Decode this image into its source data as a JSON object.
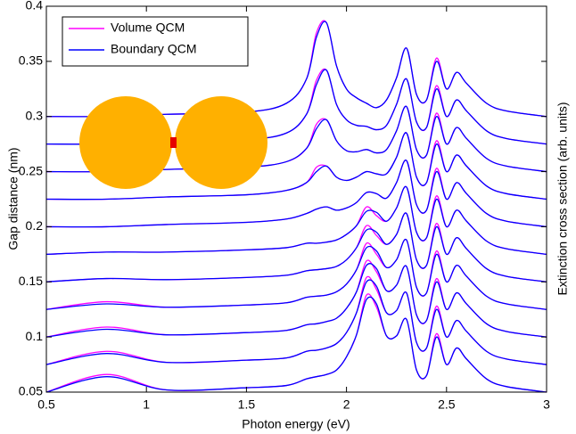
{
  "chart_data": {
    "type": "line",
    "x_label": "Photon energy (eV)",
    "y_label": "Gap distance (nm)",
    "y2_label": "Extinction cross section (arb. units)",
    "xlim": [
      0.5,
      3
    ],
    "ylim": [
      0.05,
      0.4
    ],
    "xticks": [
      0.5,
      1,
      1.5,
      2,
      2.5,
      3
    ],
    "yticks": [
      0.05,
      0.1,
      0.15,
      0.2,
      0.25,
      0.3,
      0.35,
      0.4
    ],
    "legend": "upper left",
    "x": [
      0.5,
      0.8,
      1.1,
      1.5,
      1.7,
      1.8,
      1.85,
      1.9,
      1.95,
      2.0,
      2.05,
      2.1,
      2.15,
      2.2,
      2.25,
      2.3,
      2.35,
      2.4,
      2.45,
      2.5,
      2.55,
      2.6,
      2.7,
      2.8,
      3.0
    ],
    "series": [
      {
        "name": "Volume QCM",
        "color": "#ff00ff",
        "values": [
          [
            0.05,
            0.066,
            0.052,
            0.054,
            0.056,
            0.062,
            0.064,
            0.066,
            0.07,
            0.082,
            0.102,
            0.138,
            0.127,
            0.101,
            0.101,
            0.116,
            0.07,
            0.065,
            0.103,
            0.075,
            0.09,
            0.08,
            0.062,
            0.055,
            0.05
          ],
          [
            0.075,
            0.087,
            0.077,
            0.079,
            0.081,
            0.087,
            0.088,
            0.09,
            0.094,
            0.104,
            0.122,
            0.154,
            0.143,
            0.122,
            0.124,
            0.14,
            0.095,
            0.09,
            0.128,
            0.1,
            0.115,
            0.105,
            0.087,
            0.08,
            0.075
          ],
          [
            0.1,
            0.109,
            0.102,
            0.104,
            0.106,
            0.111,
            0.112,
            0.114,
            0.117,
            0.126,
            0.141,
            0.169,
            0.159,
            0.142,
            0.147,
            0.164,
            0.12,
            0.115,
            0.153,
            0.125,
            0.14,
            0.13,
            0.112,
            0.105,
            0.1
          ],
          [
            0.125,
            0.132,
            0.127,
            0.129,
            0.131,
            0.136,
            0.137,
            0.138,
            0.141,
            0.148,
            0.161,
            0.185,
            0.175,
            0.163,
            0.17,
            0.188,
            0.145,
            0.14,
            0.178,
            0.15,
            0.165,
            0.155,
            0.137,
            0.13,
            0.125
          ],
          [
            0.15,
            0.153,
            0.152,
            0.154,
            0.156,
            0.16,
            0.161,
            0.162,
            0.164,
            0.17,
            0.181,
            0.201,
            0.192,
            0.184,
            0.193,
            0.212,
            0.17,
            0.165,
            0.203,
            0.175,
            0.19,
            0.18,
            0.162,
            0.155,
            0.15
          ],
          [
            0.175,
            0.177,
            0.177,
            0.179,
            0.181,
            0.185,
            0.185,
            0.186,
            0.188,
            0.193,
            0.201,
            0.218,
            0.21,
            0.205,
            0.217,
            0.236,
            0.195,
            0.19,
            0.228,
            0.2,
            0.215,
            0.205,
            0.187,
            0.18,
            0.175
          ],
          [
            0.2,
            0.2,
            0.202,
            0.204,
            0.207,
            0.212,
            0.216,
            0.218,
            0.215,
            0.217,
            0.222,
            0.231,
            0.23,
            0.226,
            0.24,
            0.26,
            0.22,
            0.215,
            0.253,
            0.225,
            0.24,
            0.23,
            0.212,
            0.205,
            0.2
          ],
          [
            0.225,
            0.225,
            0.227,
            0.229,
            0.233,
            0.24,
            0.254,
            0.255,
            0.245,
            0.242,
            0.245,
            0.25,
            0.248,
            0.248,
            0.263,
            0.285,
            0.245,
            0.24,
            0.278,
            0.25,
            0.265,
            0.255,
            0.237,
            0.23,
            0.225
          ],
          [
            0.25,
            0.25,
            0.252,
            0.254,
            0.259,
            0.271,
            0.293,
            0.297,
            0.278,
            0.269,
            0.268,
            0.27,
            0.267,
            0.27,
            0.287,
            0.309,
            0.27,
            0.265,
            0.303,
            0.275,
            0.29,
            0.28,
            0.262,
            0.255,
            0.25
          ],
          [
            0.275,
            0.275,
            0.277,
            0.279,
            0.285,
            0.302,
            0.333,
            0.342,
            0.311,
            0.297,
            0.292,
            0.291,
            0.288,
            0.292,
            0.311,
            0.334,
            0.295,
            0.29,
            0.328,
            0.3,
            0.315,
            0.305,
            0.287,
            0.28,
            0.275
          ],
          [
            0.3,
            0.3,
            0.302,
            0.304,
            0.312,
            0.334,
            0.376,
            0.385,
            0.346,
            0.325,
            0.317,
            0.312,
            0.308,
            0.315,
            0.335,
            0.362,
            0.32,
            0.315,
            0.353,
            0.325,
            0.34,
            0.33,
            0.312,
            0.305,
            0.3
          ]
        ]
      },
      {
        "name": "Boundary QCM",
        "color": "#0000ff",
        "values": [
          [
            0.05,
            0.064,
            0.052,
            0.054,
            0.056,
            0.062,
            0.064,
            0.066,
            0.07,
            0.082,
            0.102,
            0.134,
            0.13,
            0.101,
            0.101,
            0.116,
            0.07,
            0.065,
            0.1,
            0.075,
            0.09,
            0.08,
            0.062,
            0.055,
            0.05
          ],
          [
            0.075,
            0.085,
            0.077,
            0.079,
            0.081,
            0.087,
            0.088,
            0.09,
            0.094,
            0.104,
            0.122,
            0.15,
            0.146,
            0.122,
            0.124,
            0.14,
            0.095,
            0.09,
            0.125,
            0.1,
            0.115,
            0.105,
            0.087,
            0.08,
            0.075
          ],
          [
            0.1,
            0.107,
            0.102,
            0.104,
            0.106,
            0.111,
            0.112,
            0.114,
            0.117,
            0.126,
            0.141,
            0.165,
            0.162,
            0.142,
            0.147,
            0.164,
            0.12,
            0.115,
            0.15,
            0.125,
            0.14,
            0.13,
            0.112,
            0.105,
            0.1
          ],
          [
            0.125,
            0.13,
            0.127,
            0.129,
            0.131,
            0.136,
            0.137,
            0.138,
            0.141,
            0.148,
            0.161,
            0.181,
            0.178,
            0.163,
            0.17,
            0.188,
            0.145,
            0.14,
            0.175,
            0.15,
            0.165,
            0.155,
            0.137,
            0.13,
            0.125
          ],
          [
            0.15,
            0.153,
            0.152,
            0.154,
            0.156,
            0.16,
            0.161,
            0.162,
            0.164,
            0.17,
            0.181,
            0.197,
            0.195,
            0.184,
            0.193,
            0.212,
            0.17,
            0.165,
            0.2,
            0.175,
            0.19,
            0.18,
            0.162,
            0.155,
            0.15
          ],
          [
            0.175,
            0.177,
            0.177,
            0.179,
            0.181,
            0.185,
            0.185,
            0.186,
            0.188,
            0.193,
            0.201,
            0.214,
            0.213,
            0.205,
            0.217,
            0.236,
            0.195,
            0.19,
            0.225,
            0.2,
            0.215,
            0.205,
            0.187,
            0.18,
            0.175
          ],
          [
            0.2,
            0.2,
            0.202,
            0.204,
            0.207,
            0.212,
            0.216,
            0.218,
            0.215,
            0.217,
            0.222,
            0.231,
            0.23,
            0.226,
            0.24,
            0.26,
            0.22,
            0.215,
            0.25,
            0.225,
            0.24,
            0.23,
            0.212,
            0.205,
            0.2
          ],
          [
            0.225,
            0.225,
            0.227,
            0.229,
            0.233,
            0.24,
            0.25,
            0.255,
            0.245,
            0.242,
            0.245,
            0.25,
            0.248,
            0.248,
            0.263,
            0.285,
            0.245,
            0.24,
            0.275,
            0.25,
            0.265,
            0.255,
            0.237,
            0.23,
            0.225
          ],
          [
            0.25,
            0.25,
            0.252,
            0.254,
            0.259,
            0.271,
            0.289,
            0.297,
            0.278,
            0.269,
            0.268,
            0.27,
            0.267,
            0.27,
            0.287,
            0.309,
            0.27,
            0.265,
            0.3,
            0.275,
            0.29,
            0.28,
            0.262,
            0.255,
            0.25
          ],
          [
            0.275,
            0.275,
            0.277,
            0.279,
            0.285,
            0.302,
            0.329,
            0.342,
            0.311,
            0.297,
            0.292,
            0.291,
            0.288,
            0.292,
            0.311,
            0.334,
            0.295,
            0.29,
            0.325,
            0.3,
            0.315,
            0.305,
            0.287,
            0.28,
            0.275
          ],
          [
            0.3,
            0.3,
            0.302,
            0.304,
            0.312,
            0.334,
            0.372,
            0.385,
            0.346,
            0.325,
            0.317,
            0.312,
            0.308,
            0.315,
            0.335,
            0.362,
            0.32,
            0.315,
            0.35,
            0.325,
            0.34,
            0.33,
            0.312,
            0.305,
            0.3
          ]
        ]
      }
    ]
  }
}
